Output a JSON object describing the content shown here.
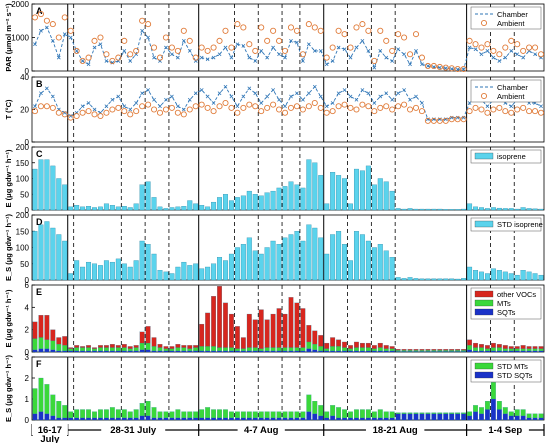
{
  "figure": {
    "periods": [
      {
        "label": "16-17",
        "label2": "July"
      },
      {
        "label": "28-31 July",
        "label2": ""
      },
      {
        "label": "4-7 Aug",
        "label2": ""
      },
      {
        "label": "18-21 Aug",
        "label2": ""
      },
      {
        "label": "1-4 Sep",
        "label2": ""
      }
    ]
  },
  "chart_data": [
    {
      "panel": "A",
      "type": "line",
      "ylabel": "PAR (μmol m⁻² s⁻¹)",
      "ylim": [
        0,
        2000
      ],
      "yticks": [
        0,
        1000,
        2000
      ],
      "legend": [
        "Chamber",
        "Ambient"
      ],
      "series": [
        {
          "name": "Chamber",
          "style": "dash-x",
          "color": "#2e75b6",
          "values": [
            800,
            1200,
            1300,
            900,
            400,
            1100,
            1000,
            600,
            300,
            200,
            700,
            800,
            300,
            250,
            300,
            600,
            300,
            500,
            1200,
            1000,
            400,
            300,
            700,
            500,
            400,
            900,
            600,
            300,
            400,
            350,
            400,
            500,
            700,
            400,
            800,
            750,
            400,
            300,
            600,
            400,
            700,
            500,
            400,
            900,
            850,
            300,
            800,
            600,
            600,
            200,
            300,
            700,
            650,
            400,
            700,
            900,
            600,
            100,
            600,
            400,
            300,
            650,
            500,
            200,
            600,
            200,
            150,
            120,
            100,
            80,
            60,
            50,
            50,
            700,
            650,
            500,
            600,
            400,
            300,
            400,
            600,
            500,
            400,
            600,
            500,
            400
          ]
        },
        {
          "name": "Ambient",
          "style": "circle",
          "color": "#e07b39",
          "values": [
            1600,
            1700,
            1500,
            1400,
            1000,
            1600,
            1200,
            600,
            300,
            400,
            900,
            1000,
            500,
            300,
            400,
            900,
            500,
            600,
            1500,
            1400,
            700,
            400,
            1000,
            700,
            600,
            1200,
            900,
            400,
            700,
            600,
            700,
            900,
            1200,
            700,
            1400,
            1300,
            800,
            600,
            1300,
            900,
            1200,
            900,
            600,
            1300,
            1200,
            500,
            1400,
            1300,
            1200,
            400,
            700,
            1200,
            1100,
            700,
            1300,
            1400,
            1200,
            300,
            1200,
            900,
            600,
            1100,
            1000,
            500,
            1100,
            400,
            150,
            150,
            120,
            100,
            80,
            60,
            60,
            900,
            800,
            700,
            800,
            600,
            500,
            700,
            900,
            800,
            600,
            700,
            700,
            500
          ]
        }
      ]
    },
    {
      "panel": "B",
      "type": "line",
      "ylabel": "T (°C)",
      "ylim": [
        0,
        40
      ],
      "yticks": [
        0,
        20,
        40
      ],
      "legend": [
        "Chamber",
        "Ambient"
      ],
      "series": [
        {
          "name": "Chamber",
          "style": "dash-x",
          "color": "#2e75b6",
          "values": [
            22,
            30,
            33,
            28,
            20,
            18,
            16,
            18,
            22,
            24,
            20,
            18,
            22,
            26,
            28,
            22,
            20,
            24,
            30,
            32,
            26,
            22,
            26,
            28,
            22,
            20,
            26,
            30,
            32,
            28,
            24,
            30,
            34,
            28,
            22,
            28,
            33,
            30,
            24,
            28,
            32,
            26,
            22,
            28,
            30,
            26,
            30,
            34,
            28,
            22,
            24,
            30,
            32,
            28,
            26,
            32,
            30,
            24,
            28,
            30,
            26,
            30,
            32,
            26,
            28,
            24,
            14,
            14,
            14,
            14,
            15,
            15,
            15,
            24,
            28,
            26,
            22,
            26,
            28,
            24,
            22,
            26,
            28,
            24,
            24,
            22
          ]
        },
        {
          "name": "Ambient",
          "style": "circle",
          "color": "#e07b39",
          "values": [
            19,
            22,
            22,
            21,
            18,
            17,
            15,
            16,
            18,
            19,
            17,
            16,
            18,
            20,
            21,
            19,
            17,
            19,
            22,
            23,
            20,
            18,
            20,
            21,
            18,
            17,
            20,
            22,
            23,
            21,
            19,
            22,
            24,
            21,
            18,
            21,
            23,
            22,
            19,
            21,
            23,
            20,
            18,
            21,
            22,
            20,
            22,
            24,
            21,
            18,
            19,
            22,
            23,
            21,
            20,
            23,
            22,
            19,
            21,
            22,
            20,
            22,
            23,
            20,
            21,
            19,
            13,
            13,
            13,
            13,
            14,
            14,
            14,
            19,
            21,
            20,
            18,
            20,
            21,
            19,
            18,
            20,
            21,
            19,
            19,
            18
          ]
        }
      ]
    },
    {
      "panel": "C",
      "type": "bar",
      "ylabel": "E (μg gdw⁻¹ h⁻¹)",
      "ylim": [
        0,
        200
      ],
      "yticks": [
        0,
        50,
        100,
        150,
        200
      ],
      "legend": [
        "isoprene"
      ],
      "series": [
        {
          "name": "isoprene",
          "color": "#5bd3ec",
          "values": [
            130,
            160,
            160,
            140,
            100,
            80,
            10,
            15,
            10,
            12,
            8,
            10,
            20,
            15,
            10,
            12,
            8,
            20,
            80,
            90,
            40,
            10,
            5,
            8,
            10,
            12,
            30,
            20,
            15,
            10,
            25,
            40,
            50,
            30,
            40,
            45,
            60,
            50,
            45,
            55,
            60,
            70,
            75,
            90,
            80,
            70,
            160,
            150,
            110,
            20,
            120,
            110,
            100,
            20,
            130,
            125,
            140,
            80,
            100,
            90,
            60,
            5,
            3,
            5,
            3,
            3,
            3,
            3,
            3,
            2,
            2,
            2,
            3,
            20,
            10,
            8,
            5,
            8,
            6,
            5,
            5,
            3,
            8,
            5,
            4,
            3
          ]
        }
      ]
    },
    {
      "panel": "D",
      "type": "bar",
      "ylabel": "E_S (μg gdw⁻¹ h⁻¹)",
      "ylim": [
        0,
        200
      ],
      "yticks": [
        0,
        50,
        100,
        150,
        200
      ],
      "legend": [
        "STD isoprene"
      ],
      "series": [
        {
          "name": "STD isoprene",
          "color": "#5bd3ec",
          "values": [
            150,
            170,
            180,
            160,
            140,
            120,
            20,
            60,
            40,
            55,
            50,
            45,
            60,
            55,
            65,
            50,
            40,
            60,
            120,
            110,
            80,
            30,
            25,
            20,
            40,
            55,
            45,
            50,
            35,
            40,
            50,
            70,
            60,
            80,
            100,
            110,
            130,
            90,
            80,
            100,
            120,
            110,
            130,
            140,
            150,
            120,
            170,
            160,
            130,
            80,
            140,
            150,
            110,
            60,
            150,
            140,
            120,
            100,
            110,
            90,
            70,
            8,
            5,
            8,
            5,
            4,
            4,
            4,
            4,
            4,
            4,
            3,
            5,
            40,
            30,
            25,
            20,
            35,
            30,
            25,
            20,
            15,
            30,
            25,
            20,
            15
          ]
        }
      ]
    },
    {
      "panel": "E",
      "type": "stacked-bar",
      "ylabel": "E (μg gdw⁻¹ h⁻¹)",
      "ylim": [
        0,
        6
      ],
      "yticks": [
        0,
        2,
        4,
        6
      ],
      "legend": [
        "other VOCs",
        "MTs",
        "SQTs"
      ],
      "series": [
        {
          "name": "other VOCs",
          "color": "#d7261e",
          "values": [
            1.5,
            2.0,
            2.2,
            1.0,
            0.6,
            0.8,
            0.1,
            0.2,
            0.1,
            0.2,
            0.1,
            0.2,
            0.2,
            0.3,
            0.2,
            0.3,
            0.2,
            0.2,
            1.0,
            1.5,
            0.8,
            0.3,
            0.2,
            0.2,
            0.3,
            0.2,
            0.3,
            0.2,
            2.0,
            3.0,
            4.5,
            5.5,
            4.0,
            3.0,
            2.0,
            1.0,
            3.0,
            2.5,
            3.5,
            2.5,
            3.0,
            3.5,
            3.0,
            4.5,
            4.0,
            3.5,
            1.5,
            1.2,
            1.0,
            0.5,
            0.8,
            0.6,
            0.5,
            0.3,
            0.5,
            0.4,
            0.4,
            0.3,
            0.4,
            0.3,
            0.2,
            0.1,
            0.1,
            0.1,
            0.1,
            0.1,
            0.1,
            0.1,
            0.1,
            0.1,
            0.1,
            0.1,
            0.1,
            0.5,
            0.4,
            0.3,
            0.3,
            0.4,
            0.3,
            0.3,
            0.2,
            0.2,
            0.3,
            0.2,
            0.2,
            0.2
          ]
        },
        {
          "name": "MTs",
          "color": "#3ad83a",
          "values": [
            1.0,
            1.0,
            0.8,
            0.8,
            0.6,
            0.5,
            0.2,
            0.3,
            0.3,
            0.3,
            0.2,
            0.3,
            0.3,
            0.3,
            0.3,
            0.3,
            0.2,
            0.3,
            0.6,
            0.6,
            0.4,
            0.3,
            0.2,
            0.2,
            0.3,
            0.3,
            0.2,
            0.3,
            0.4,
            0.4,
            0.4,
            0.3,
            0.3,
            0.3,
            0.2,
            0.2,
            0.3,
            0.3,
            0.2,
            0.3,
            0.3,
            0.3,
            0.3,
            0.3,
            0.3,
            0.3,
            0.6,
            0.5,
            0.4,
            0.2,
            0.4,
            0.4,
            0.3,
            0.2,
            0.3,
            0.3,
            0.3,
            0.2,
            0.3,
            0.2,
            0.2,
            0.1,
            0.1,
            0.1,
            0.1,
            0.1,
            0.1,
            0.1,
            0.1,
            0.1,
            0.1,
            0.1,
            0.1,
            0.4,
            0.3,
            0.3,
            0.2,
            0.3,
            0.3,
            0.2,
            0.2,
            0.2,
            0.2,
            0.2,
            0.2,
            0.2
          ]
        },
        {
          "name": "SQTs",
          "color": "#1a32c8",
          "values": [
            0.2,
            0.3,
            0.3,
            0.2,
            0.1,
            0.1,
            0.1,
            0.1,
            0.1,
            0.1,
            0.1,
            0.1,
            0.1,
            0.1,
            0.1,
            0.1,
            0.1,
            0.1,
            0.2,
            0.2,
            0.1,
            0.1,
            0.1,
            0.1,
            0.1,
            0.1,
            0.1,
            0.1,
            0.1,
            0.1,
            0.1,
            0.1,
            0.1,
            0.1,
            0.1,
            0.1,
            0.1,
            0.1,
            0.1,
            0.1,
            0.1,
            0.1,
            0.1,
            0.1,
            0.1,
            0.1,
            0.3,
            0.2,
            0.1,
            0.1,
            0.1,
            0.1,
            0.1,
            0.1,
            0.1,
            0.1,
            0.1,
            0.1,
            0.1,
            0.1,
            0.1,
            0.05,
            0.05,
            0.05,
            0.05,
            0.05,
            0.05,
            0.05,
            0.05,
            0.05,
            0.05,
            0.05,
            0.05,
            0.2,
            0.1,
            0.1,
            0.1,
            0.1,
            0.1,
            0.1,
            0.1,
            0.1,
            0.1,
            0.1,
            0.1,
            0.1
          ]
        }
      ]
    },
    {
      "panel": "F",
      "type": "stacked-bar",
      "ylabel": "E_S (μg gdw⁻¹ h⁻¹)",
      "ylim": [
        0,
        3
      ],
      "yticks": [
        0,
        1,
        2,
        3
      ],
      "legend": [
        "STD MTs",
        "STD SQTs"
      ],
      "series": [
        {
          "name": "STD MTs",
          "color": "#3ad83a",
          "values": [
            1.2,
            1.6,
            1.4,
            1.0,
            0.8,
            0.6,
            0.3,
            0.4,
            0.4,
            0.4,
            0.3,
            0.4,
            0.4,
            0.5,
            0.4,
            0.4,
            0.3,
            0.4,
            0.6,
            0.7,
            0.5,
            0.3,
            0.3,
            0.3,
            0.4,
            0.3,
            0.3,
            0.3,
            0.4,
            0.5,
            0.4,
            0.4,
            0.4,
            0.3,
            0.3,
            0.3,
            0.3,
            0.3,
            0.3,
            0.3,
            0.3,
            0.3,
            0.3,
            0.3,
            0.3,
            0.3,
            0.8,
            0.6,
            0.5,
            0.3,
            0.5,
            0.5,
            0.4,
            0.3,
            0.4,
            0.4,
            0.4,
            0.3,
            0.4,
            0.3,
            0.3,
            0.05,
            0.05,
            0.05,
            0.05,
            0.05,
            0.05,
            0.05,
            0.05,
            0.05,
            0.05,
            0.05,
            0.05,
            0.2,
            0.3,
            0.3,
            0.4,
            0.8,
            0.4,
            0.3,
            0.2,
            0.3,
            0.3,
            0.2,
            0.2,
            0.2
          ]
        },
        {
          "name": "STD SQTs",
          "color": "#1a32c8",
          "values": [
            0.3,
            0.4,
            0.3,
            0.2,
            0.1,
            0.1,
            0.1,
            0.1,
            0.1,
            0.1,
            0.1,
            0.1,
            0.1,
            0.1,
            0.1,
            0.1,
            0.1,
            0.1,
            0.2,
            0.2,
            0.1,
            0.1,
            0.1,
            0.1,
            0.1,
            0.1,
            0.1,
            0.1,
            0.1,
            0.1,
            0.1,
            0.1,
            0.1,
            0.1,
            0.1,
            0.1,
            0.1,
            0.1,
            0.1,
            0.1,
            0.1,
            0.1,
            0.1,
            0.1,
            0.1,
            0.1,
            0.4,
            0.3,
            0.2,
            0.1,
            0.2,
            0.1,
            0.1,
            0.1,
            0.1,
            0.1,
            0.1,
            0.1,
            0.1,
            0.1,
            0.1,
            0.3,
            0.3,
            0.3,
            0.3,
            0.3,
            0.3,
            0.3,
            0.3,
            0.3,
            0.3,
            0.3,
            0.3,
            0.2,
            0.4,
            0.3,
            0.5,
            1.0,
            0.5,
            0.3,
            0.2,
            0.2,
            0.2,
            0.1,
            0.1,
            0.1
          ]
        }
      ]
    }
  ]
}
